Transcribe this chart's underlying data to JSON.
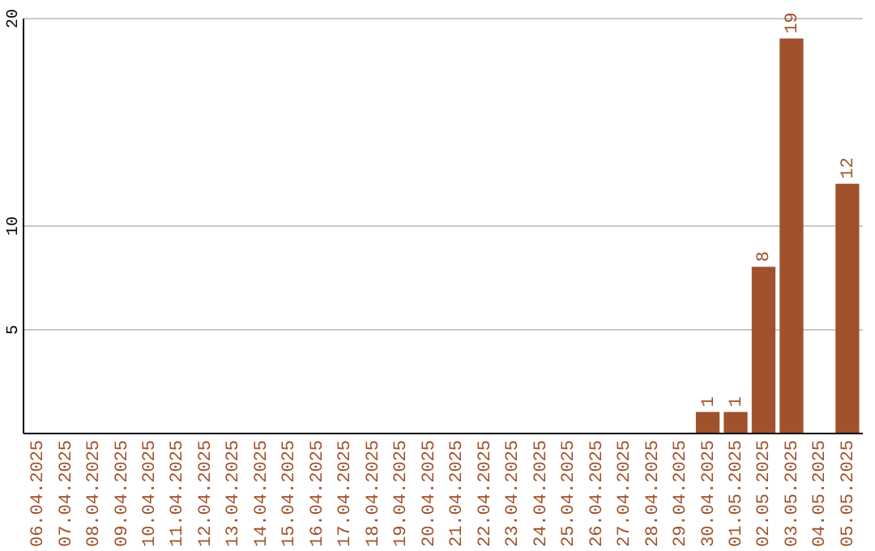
{
  "chart_data": {
    "type": "bar",
    "categories": [
      "06.04.2025",
      "07.04.2025",
      "08.04.2025",
      "09.04.2025",
      "10.04.2025",
      "11.04.2025",
      "12.04.2025",
      "13.04.2025",
      "14.04.2025",
      "15.04.2025",
      "16.04.2025",
      "17.04.2025",
      "18.04.2025",
      "19.04.2025",
      "20.04.2025",
      "21.04.2025",
      "22.04.2025",
      "23.04.2025",
      "24.04.2025",
      "25.04.2025",
      "26.04.2025",
      "27.04.2025",
      "28.04.2025",
      "29.04.2025",
      "30.04.2025",
      "01.05.2025",
      "02.05.2025",
      "03.05.2025",
      "04.05.2025",
      "05.05.2025"
    ],
    "values": [
      0,
      0,
      0,
      0,
      0,
      0,
      0,
      0,
      0,
      0,
      0,
      0,
      0,
      0,
      0,
      0,
      0,
      0,
      0,
      0,
      0,
      0,
      0,
      0,
      1,
      1,
      8,
      19,
      0,
      12
    ],
    "value_labels": [
      null,
      null,
      null,
      null,
      null,
      null,
      null,
      null,
      null,
      null,
      null,
      null,
      null,
      null,
      null,
      null,
      null,
      null,
      null,
      null,
      null,
      null,
      null,
      null,
      "1",
      "1",
      "8",
      "19",
      null,
      "12"
    ],
    "color": "#a0522d",
    "ylim": [
      0,
      20
    ],
    "yticks": [
      5,
      10,
      20
    ],
    "grid": "y"
  }
}
